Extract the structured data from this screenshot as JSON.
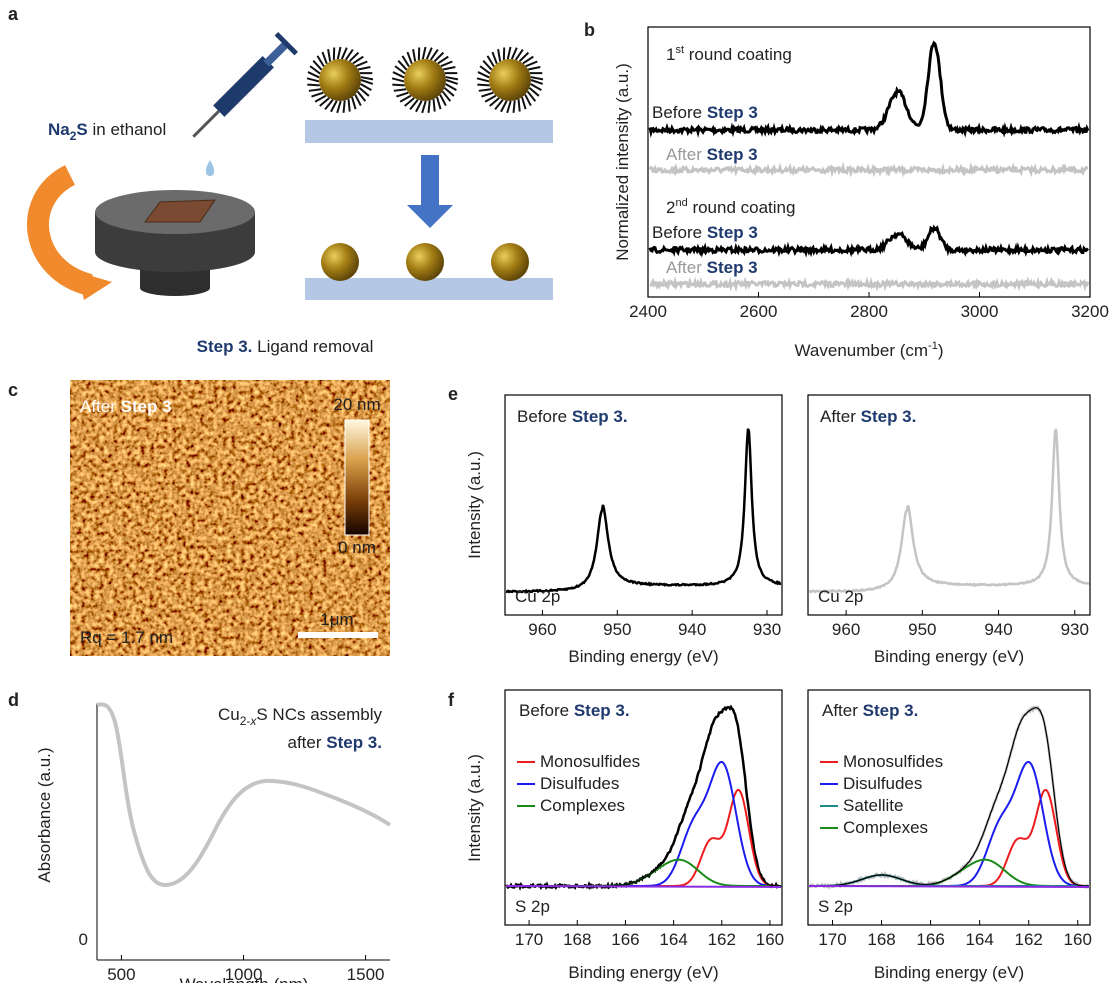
{
  "panel_a": {
    "label": "a",
    "reagent": [
      "Na",
      "2",
      "S",
      " in ethanol"
    ],
    "caption": [
      "Step 3.",
      " Ligand removal"
    ]
  },
  "panel_b": {
    "label": "b",
    "x_label": [
      "Wavenumber (cm",
      "-1",
      ")"
    ],
    "y_label": "Normalized intensity (a.u.)",
    "xlim": [
      2400,
      3200
    ],
    "xticks": [
      2400,
      2600,
      2800,
      3000,
      3200
    ],
    "rounds": [
      {
        "title": [
          "1",
          "st",
          " round coating"
        ],
        "before": [
          "Before ",
          "Step 3"
        ],
        "after": [
          "After ",
          "Step 3"
        ]
      },
      {
        "title": [
          "2",
          "nd",
          " round coating"
        ],
        "before": [
          "Before ",
          "Step 3"
        ],
        "after": [
          "After ",
          "Step 3"
        ]
      }
    ]
  },
  "panel_c": {
    "label": "c",
    "title": [
      "After ",
      "Step 3"
    ],
    "scale_max": "20 nm",
    "scale_min": "0 nm",
    "scale_bar": "1μm",
    "roughness": "Rq = 1.7 nm"
  },
  "panel_d": {
    "label": "d",
    "x_label": "Wavelength (nm)",
    "y_label": "Absorbance (a.u.)",
    "xlim": [
      400,
      1600
    ],
    "xticks": [
      500,
      1000,
      1500
    ],
    "yticks": [
      0
    ],
    "annotation": [
      "Cu",
      "2-",
      "x",
      "S NCs assembly"
    ],
    "annotation2": [
      "after ",
      "Step 3."
    ]
  },
  "panel_e": {
    "label": "e",
    "y_label": "Intensity (a.u.)",
    "plots": [
      {
        "title": [
          "Before ",
          "Step 3."
        ],
        "region": "Cu 2p",
        "x_label": "Binding energy (eV)",
        "xlim": [
          965,
          928
        ],
        "xticks": [
          960,
          950,
          940,
          930
        ]
      },
      {
        "title": [
          "After ",
          "Step 3."
        ],
        "region": "Cu 2p",
        "x_label": "Binding energy (eV)",
        "xlim": [
          965,
          928
        ],
        "xticks": [
          960,
          950,
          940,
          930
        ]
      }
    ]
  },
  "panel_f": {
    "label": "f",
    "y_label": "Intensity (a.u.)",
    "plots": [
      {
        "title": [
          "Before ",
          "Step 3."
        ],
        "region": "S 2p",
        "x_label": "Binding energy (eV)",
        "xlim": [
          171,
          159.5
        ],
        "xticks": [
          170,
          168,
          166,
          164,
          162,
          160
        ],
        "legend": [
          {
            "name": "Monosulfides",
            "color": "#ee1c1c"
          },
          {
            "name": "Disulfudes",
            "color": "#1c1cee"
          },
          {
            "name": "Complexes",
            "color": "#1a8a1a"
          }
        ]
      },
      {
        "title": [
          "After ",
          "Step 3."
        ],
        "region": "S 2p",
        "x_label": "Binding energy (eV)",
        "xlim": [
          171,
          159.5
        ],
        "xticks": [
          170,
          168,
          166,
          164,
          162,
          160
        ],
        "legend": [
          {
            "name": "Monosulfides",
            "color": "#ee1c1c"
          },
          {
            "name": "Disulfudes",
            "color": "#1c1cee"
          },
          {
            "name": "Satellite",
            "color": "#1a8a8a"
          },
          {
            "name": "Complexes",
            "color": "#1a8a1a"
          }
        ]
      }
    ]
  }
}
